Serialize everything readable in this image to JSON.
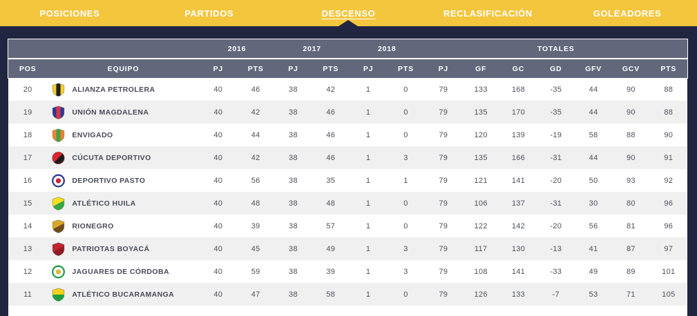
{
  "tabs": [
    {
      "id": "posiciones",
      "label": "POSICIONES",
      "active": false
    },
    {
      "id": "partidos",
      "label": "PARTIDOS",
      "active": false
    },
    {
      "id": "descenso",
      "label": "DESCENSO",
      "active": true
    },
    {
      "id": "reclasificacion",
      "label": "RECLASIFICACIÓN",
      "active": false
    },
    {
      "id": "goleadores",
      "label": "GOLEADORES",
      "active": false
    }
  ],
  "colors": {
    "nav_bg": "#F4C63E",
    "page_bg": "#212640",
    "header_bg": "#62677B",
    "row_alt": "#F0F0F0",
    "row": "#FFFFFF",
    "text": "#4C505C"
  },
  "table": {
    "group_headers": [
      {
        "label": "",
        "span": 2
      },
      {
        "label": "2016",
        "span": 2
      },
      {
        "label": "2017",
        "span": 2
      },
      {
        "label": "2018",
        "span": 2
      },
      {
        "label": "TOTALES",
        "span": 7
      }
    ],
    "columns": [
      "POS",
      "EQUIPO",
      "PJ",
      "PTS",
      "PJ",
      "PTS",
      "PJ",
      "PTS",
      "PJ",
      "GF",
      "GC",
      "GD",
      "GFV",
      "GCV",
      "PTS"
    ],
    "rows": [
      {
        "pos": 20,
        "team": "ALIANZA PETROLERA",
        "logo": {
          "icon": "alianza-petrolera-crest-icon",
          "shape": "shield",
          "variant": "stripe",
          "colors": [
            "#F5D02C",
            "#1F1F1F"
          ]
        },
        "values": [
          40,
          46,
          38,
          42,
          1,
          0,
          79,
          133,
          168,
          -35,
          44,
          90,
          88
        ]
      },
      {
        "pos": 19,
        "team": "UNIÓN MAGDALENA",
        "logo": {
          "icon": "union-magdalena-crest-icon",
          "shape": "shield",
          "variant": "stripe",
          "colors": [
            "#2B3A97",
            "#D93344"
          ]
        },
        "values": [
          40,
          42,
          38,
          46,
          1,
          0,
          79,
          135,
          170,
          -35,
          44,
          90,
          88
        ]
      },
      {
        "pos": 18,
        "team": "ENVIGADO",
        "logo": {
          "icon": "envigado-crest-icon",
          "shape": "shield",
          "variant": "stripe",
          "colors": [
            "#F0832D",
            "#44A048"
          ]
        },
        "values": [
          40,
          44,
          38,
          46,
          1,
          0,
          79,
          120,
          139,
          -19,
          58,
          88,
          90
        ]
      },
      {
        "pos": 17,
        "team": "CÚCUTA DEPORTIVO",
        "logo": {
          "icon": "cucuta-deportivo-crest-icon",
          "shape": "circle",
          "variant": "half",
          "colors": [
            "#D8262D",
            "#1B1B1B"
          ]
        },
        "values": [
          40,
          42,
          38,
          46,
          1,
          3,
          79,
          135,
          166,
          -31,
          44,
          90,
          91
        ]
      },
      {
        "pos": 16,
        "team": "DEPORTIVO PASTO",
        "logo": {
          "icon": "deportivo-pasto-crest-icon",
          "shape": "circle",
          "variant": "ring",
          "colors": [
            "#CF2434",
            "#2B3A97"
          ]
        },
        "values": [
          40,
          56,
          38,
          35,
          1,
          1,
          79,
          121,
          141,
          -20,
          50,
          93,
          92
        ]
      },
      {
        "pos": 15,
        "team": "ATLÉTICO HUILA",
        "logo": {
          "icon": "atletico-huila-crest-icon",
          "shape": "shield",
          "variant": "diag",
          "colors": [
            "#F6E01F",
            "#36A648"
          ]
        },
        "values": [
          40,
          48,
          38,
          48,
          1,
          0,
          79,
          106,
          137,
          -31,
          30,
          80,
          96
        ]
      },
      {
        "pos": 14,
        "team": "RIONEGRO",
        "logo": {
          "icon": "rionegro-crest-icon",
          "shape": "shield",
          "variant": "diag",
          "colors": [
            "#D9A827",
            "#6F4B1E"
          ]
        },
        "values": [
          40,
          39,
          38,
          57,
          1,
          0,
          79,
          122,
          142,
          -20,
          56,
          81,
          96
        ]
      },
      {
        "pos": 13,
        "team": "PATRIOTAS BOYACÁ",
        "logo": {
          "icon": "patriotas-boyaca-crest-icon",
          "shape": "shield",
          "variant": "diag",
          "colors": [
            "#C2242E",
            "#8E1B24"
          ]
        },
        "values": [
          40,
          45,
          38,
          49,
          1,
          3,
          79,
          117,
          130,
          -13,
          41,
          87,
          97
        ]
      },
      {
        "pos": 12,
        "team": "JAGUARES DE CÓRDOBA",
        "logo": {
          "icon": "jaguares-de-cordoba-crest-icon",
          "shape": "circle",
          "variant": "ring",
          "colors": [
            "#E0B63C",
            "#1E9C4C"
          ]
        },
        "values": [
          40,
          59,
          38,
          39,
          1,
          3,
          79,
          108,
          141,
          -33,
          49,
          89,
          101
        ]
      },
      {
        "pos": 11,
        "team": "ATLÉTICO BUCARAMANGA",
        "logo": {
          "icon": "atletico-bucaramanga-crest-icon",
          "shape": "shield",
          "variant": "hsplit",
          "colors": [
            "#F7D117",
            "#1E9E3E"
          ]
        },
        "values": [
          40,
          47,
          38,
          58,
          1,
          0,
          79,
          126,
          133,
          -7,
          53,
          71,
          105
        ]
      }
    ]
  }
}
